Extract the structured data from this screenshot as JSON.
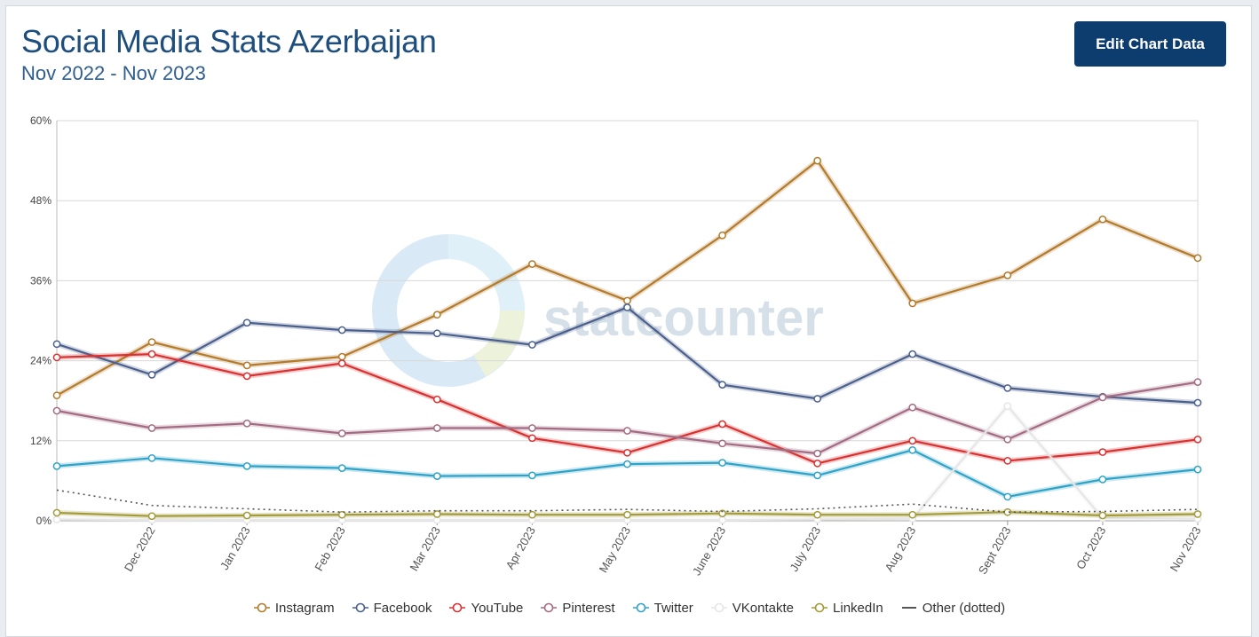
{
  "header": {
    "title": "Social Media Stats Azerbaijan",
    "subtitle": "Nov 2022 - Nov 2023",
    "edit_button": "Edit Chart Data"
  },
  "watermark": "statcounter",
  "chart_data": {
    "type": "line",
    "categories": [
      "Nov 2022",
      "Dec 2022",
      "Jan 2023",
      "Feb 2023",
      "Mar 2023",
      "Apr 2023",
      "May 2023",
      "June 2023",
      "July 2023",
      "Aug 2023",
      "Sept 2023",
      "Oct 2023",
      "Nov 2023"
    ],
    "x_tick_labels": [
      "",
      "Dec 2022",
      "Jan 2023",
      "Feb 2023",
      "Mar 2023",
      "Apr 2023",
      "May 2023",
      "June 2023",
      "July 2023",
      "Aug 2023",
      "Sept 2023",
      "Oct 2023",
      "Nov 2023"
    ],
    "y_ticks": [
      "0%",
      "12%",
      "24%",
      "36%",
      "48%",
      "60%"
    ],
    "ylim": [
      0,
      60
    ],
    "grid": true,
    "legend_position": "bottom",
    "series": [
      {
        "name": "Instagram",
        "color": "#b27a2a",
        "values": [
          18.8,
          26.8,
          23.3,
          24.6,
          30.9,
          38.5,
          33.0,
          42.8,
          54.0,
          32.6,
          36.8,
          45.2,
          39.4
        ]
      },
      {
        "name": "Facebook",
        "color": "#4a5f8c",
        "values": [
          26.5,
          21.9,
          29.7,
          28.6,
          28.1,
          26.4,
          32.0,
          20.4,
          18.3,
          25.0,
          19.9,
          18.6,
          17.7
        ]
      },
      {
        "name": "YouTube",
        "color": "#d93030",
        "values": [
          24.5,
          25.0,
          21.7,
          23.6,
          18.2,
          12.4,
          10.2,
          14.5,
          8.6,
          12.0,
          9.0,
          10.3,
          12.2
        ]
      },
      {
        "name": "Pinterest",
        "color": "#a36b82",
        "values": [
          16.5,
          13.9,
          14.6,
          13.1,
          13.9,
          13.9,
          13.5,
          11.6,
          10.1,
          17.0,
          12.2,
          18.5,
          20.8
        ]
      },
      {
        "name": "Twitter",
        "color": "#2fa3c7",
        "values": [
          8.2,
          9.4,
          8.2,
          7.9,
          6.7,
          6.8,
          8.5,
          8.7,
          6.8,
          10.6,
          3.6,
          6.2,
          7.7
        ]
      },
      {
        "name": "VKontakte",
        "color": "#e6e6e6",
        "values": [
          0.2,
          0.1,
          0.1,
          0.1,
          0.1,
          0.1,
          0.1,
          0.1,
          0.2,
          0.3,
          17.2,
          0.4,
          0.3
        ]
      },
      {
        "name": "LinkedIn",
        "color": "#a39a3a",
        "values": [
          1.2,
          0.7,
          0.8,
          0.9,
          1.0,
          0.9,
          0.9,
          1.1,
          0.9,
          0.9,
          1.3,
          0.8,
          1.0
        ]
      },
      {
        "name": "Other (dotted)",
        "color": "#555555",
        "dotted": true,
        "values": [
          4.6,
          2.3,
          1.8,
          1.3,
          1.5,
          1.5,
          1.7,
          1.4,
          1.8,
          2.5,
          1.3,
          1.4,
          1.7
        ]
      }
    ]
  }
}
